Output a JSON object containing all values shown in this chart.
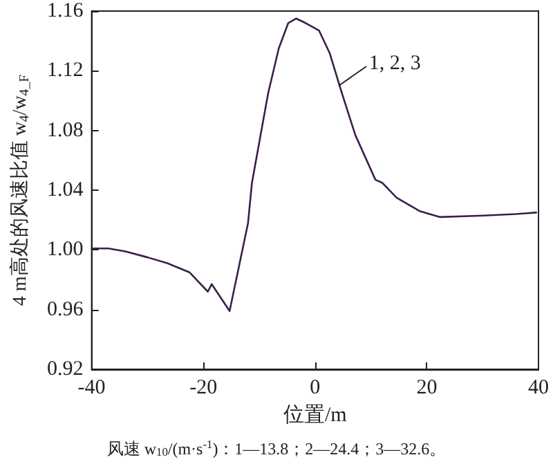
{
  "chart_data": {
    "type": "line",
    "xlabel": "位置/m",
    "ylabel": "4 m高处的风速比值 w$_{4}$/w$_{4_F}$",
    "x": [
      -40,
      -37,
      -34,
      -30,
      -26.4,
      -22.5,
      -19.2,
      -18.5,
      -15.3,
      -12,
      -11.3,
      -8.4,
      -6.5,
      -4.8,
      -3.4,
      -1.7,
      0.7,
      2.6,
      4.8,
      7.2,
      10.8,
      12,
      14.6,
      18.7,
      22.3,
      30.2,
      36,
      39.6
    ],
    "series": [
      {
        "color": "#3a1f4a",
        "values": [
          1.001,
          1.001,
          0.999,
          0.995,
          0.991,
          0.985,
          0.972,
          0.977,
          0.959,
          1.018,
          1.045,
          1.105,
          1.135,
          1.152,
          1.155,
          1.152,
          1.147,
          1.132,
          1.105,
          1.077,
          1.047,
          1.045,
          1.035,
          1.026,
          1.022,
          1.023,
          1.024,
          1.025
        ]
      }
    ],
    "xlim": [
      -40,
      40
    ],
    "xticks": [
      -40,
      -20,
      0,
      20,
      40
    ],
    "ylim": [
      0.92,
      1.16
    ],
    "yticks": [
      {
        "value": 0.92,
        "label": "0.92"
      },
      {
        "value": 0.96,
        "label": "0.96"
      },
      {
        "value": 1.0,
        "label": "1.00"
      },
      {
        "value": 1.04,
        "label": "1.04"
      },
      {
        "value": 1.08,
        "label": "1.08"
      },
      {
        "value": 1.12,
        "label": "1.12"
      },
      {
        "value": 1.16,
        "label": "1.16"
      }
    ],
    "grid": false,
    "marker": "none",
    "line_style": "solid",
    "annotations": [
      {
        "text": "1, 2, 3",
        "x": 4.2,
        "y": 1.11
      },
      "风速 w$_{10}$/(m·s$^{-1}$)：1—13.8；2—24.4；3—32.6。"
    ]
  }
}
